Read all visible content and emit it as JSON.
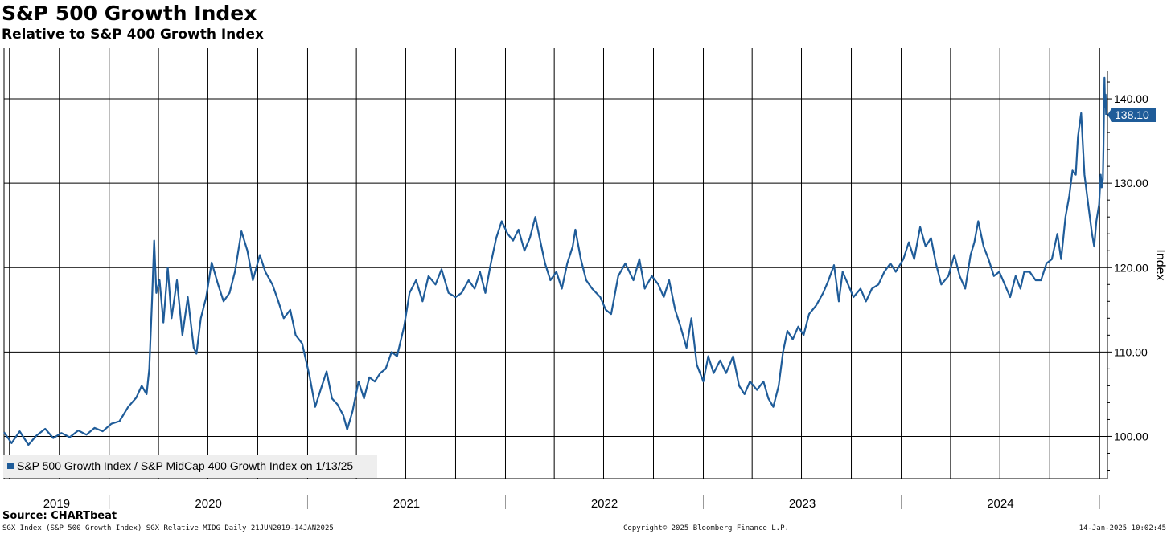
{
  "header": {
    "title": "S&P 500 Growth Index",
    "subtitle": "Relative to S&P 400 Growth Index"
  },
  "footer": {
    "source": "Source: CHARTbeat",
    "ticker_info": "SGX Index (S&P 500 Growth Index) SGX Relative MIDG  Daily 21JUN2019-14JAN2025",
    "copyright": "Copyright© 2025 Bloomberg Finance L.P.",
    "timestamp": "14-Jan-2025 10:02:45"
  },
  "colors": {
    "series": "#1f5c99",
    "grid": "#000000",
    "legend_bg": "#eeeeee",
    "label_text": "#ffffff"
  },
  "chart_data": {
    "type": "line",
    "title": "S&P 500 Growth Index",
    "subtitle": "Relative to S&P 400 Growth Index",
    "ylabel": "Index",
    "xlabel": "",
    "ylim": [
      95,
      146
    ],
    "xlim": [
      "2019-06-21",
      "2025-01-14"
    ],
    "yticks": [
      100,
      110,
      120,
      130,
      140
    ],
    "ytick_labels": [
      "100.00",
      "110.00",
      "120.00",
      "130.00",
      "140.00"
    ],
    "year_labels": [
      "2019",
      "2020",
      "2021",
      "2022",
      "2023",
      "2024"
    ],
    "grid": true,
    "legend": {
      "position": "bottom-left",
      "entries": [
        "S&P 500 Growth Index / S&P MidCap 400 Growth Index on 1/13/25"
      ]
    },
    "last_value": 138.1,
    "last_value_label": "138.10",
    "series": [
      {
        "name": "S&P 500 Growth Index / S&P MidCap 400 Growth Index on 1/13/25",
        "points": [
          [
            "2019-06-21",
            100.5
          ],
          [
            "2019-07-05",
            99.2
          ],
          [
            "2019-07-20",
            100.6
          ],
          [
            "2019-08-05",
            99.0
          ],
          [
            "2019-08-20",
            100.1
          ],
          [
            "2019-09-05",
            100.9
          ],
          [
            "2019-09-20",
            99.8
          ],
          [
            "2019-10-05",
            100.4
          ],
          [
            "2019-10-20",
            99.9
          ],
          [
            "2019-11-05",
            100.7
          ],
          [
            "2019-11-20",
            100.2
          ],
          [
            "2019-12-05",
            101.0
          ],
          [
            "2019-12-20",
            100.6
          ],
          [
            "2020-01-05",
            101.5
          ],
          [
            "2020-01-20",
            101.8
          ],
          [
            "2020-02-05",
            103.5
          ],
          [
            "2020-02-20",
            104.6
          ],
          [
            "2020-03-01",
            106.0
          ],
          [
            "2020-03-10",
            105.0
          ],
          [
            "2020-03-15",
            108.0
          ],
          [
            "2020-03-20",
            116.0
          ],
          [
            "2020-03-24",
            123.2
          ],
          [
            "2020-03-28",
            117.0
          ],
          [
            "2020-04-03",
            118.5
          ],
          [
            "2020-04-10",
            113.5
          ],
          [
            "2020-04-18",
            120.0
          ],
          [
            "2020-04-25",
            114.0
          ],
          [
            "2020-05-05",
            118.5
          ],
          [
            "2020-05-15",
            112.0
          ],
          [
            "2020-05-25",
            116.5
          ],
          [
            "2020-06-05",
            110.5
          ],
          [
            "2020-06-10",
            109.8
          ],
          [
            "2020-06-18",
            114.0
          ],
          [
            "2020-06-28",
            116.5
          ],
          [
            "2020-07-08",
            120.6
          ],
          [
            "2020-07-20",
            118.0
          ],
          [
            "2020-07-30",
            116.0
          ],
          [
            "2020-08-10",
            117.0
          ],
          [
            "2020-08-20",
            119.5
          ],
          [
            "2020-09-01",
            124.3
          ],
          [
            "2020-09-12",
            122.0
          ],
          [
            "2020-09-22",
            118.5
          ],
          [
            "2020-10-05",
            121.5
          ],
          [
            "2020-10-15",
            119.5
          ],
          [
            "2020-10-28",
            118.0
          ],
          [
            "2020-11-08",
            116.0
          ],
          [
            "2020-11-18",
            114.0
          ],
          [
            "2020-11-30",
            115.0
          ],
          [
            "2020-12-10",
            112.0
          ],
          [
            "2020-12-22",
            111.0
          ],
          [
            "2021-01-05",
            107.0
          ],
          [
            "2021-01-15",
            103.5
          ],
          [
            "2021-01-25",
            105.5
          ],
          [
            "2021-02-05",
            107.7
          ],
          [
            "2021-02-15",
            104.5
          ],
          [
            "2021-02-25",
            103.8
          ],
          [
            "2021-03-08",
            102.5
          ],
          [
            "2021-03-15",
            100.8
          ],
          [
            "2021-03-25",
            103.0
          ],
          [
            "2021-04-05",
            106.5
          ],
          [
            "2021-04-15",
            104.5
          ],
          [
            "2021-04-25",
            107.0
          ],
          [
            "2021-05-05",
            106.5
          ],
          [
            "2021-05-15",
            107.5
          ],
          [
            "2021-05-25",
            108.0
          ],
          [
            "2021-06-05",
            110.0
          ],
          [
            "2021-06-15",
            109.5
          ],
          [
            "2021-06-28",
            113.0
          ],
          [
            "2021-07-08",
            117.0
          ],
          [
            "2021-07-20",
            118.5
          ],
          [
            "2021-08-01",
            116.0
          ],
          [
            "2021-08-12",
            119.0
          ],
          [
            "2021-08-25",
            118.0
          ],
          [
            "2021-09-05",
            119.8
          ],
          [
            "2021-09-18",
            117.0
          ],
          [
            "2021-10-01",
            116.5
          ],
          [
            "2021-10-12",
            117.0
          ],
          [
            "2021-10-25",
            118.5
          ],
          [
            "2021-11-05",
            117.5
          ],
          [
            "2021-11-15",
            119.5
          ],
          [
            "2021-11-25",
            117.0
          ],
          [
            "2021-12-05",
            120.5
          ],
          [
            "2021-12-15",
            123.5
          ],
          [
            "2021-12-25",
            125.5
          ],
          [
            "2022-01-05",
            124.0
          ],
          [
            "2022-01-15",
            123.2
          ],
          [
            "2022-01-25",
            124.5
          ],
          [
            "2022-02-05",
            122.0
          ],
          [
            "2022-02-15",
            123.5
          ],
          [
            "2022-02-25",
            126.0
          ],
          [
            "2022-03-05",
            123.5
          ],
          [
            "2022-03-15",
            120.5
          ],
          [
            "2022-03-25",
            118.5
          ],
          [
            "2022-04-05",
            119.5
          ],
          [
            "2022-04-15",
            117.5
          ],
          [
            "2022-04-25",
            120.5
          ],
          [
            "2022-05-05",
            122.5
          ],
          [
            "2022-05-10",
            124.5
          ],
          [
            "2022-05-20",
            121.0
          ],
          [
            "2022-05-30",
            118.5
          ],
          [
            "2022-06-10",
            117.5
          ],
          [
            "2022-06-25",
            116.5
          ],
          [
            "2022-07-05",
            115.0
          ],
          [
            "2022-07-15",
            114.5
          ],
          [
            "2022-07-28",
            119.0
          ],
          [
            "2022-08-10",
            120.5
          ],
          [
            "2022-08-25",
            118.5
          ],
          [
            "2022-09-05",
            121.0
          ],
          [
            "2022-09-15",
            117.5
          ],
          [
            "2022-09-28",
            119.0
          ],
          [
            "2022-10-10",
            118.0
          ],
          [
            "2022-10-20",
            116.5
          ],
          [
            "2022-10-30",
            118.5
          ],
          [
            "2022-11-10",
            115.0
          ],
          [
            "2022-11-20",
            113.0
          ],
          [
            "2022-12-01",
            110.5
          ],
          [
            "2022-12-10",
            114.0
          ],
          [
            "2022-12-20",
            108.5
          ],
          [
            "2023-01-01",
            106.5
          ],
          [
            "2023-01-10",
            109.5
          ],
          [
            "2023-01-20",
            107.5
          ],
          [
            "2023-02-01",
            109.0
          ],
          [
            "2023-02-12",
            107.5
          ],
          [
            "2023-02-25",
            109.5
          ],
          [
            "2023-03-08",
            106.0
          ],
          [
            "2023-03-18",
            105.0
          ],
          [
            "2023-03-28",
            106.5
          ],
          [
            "2023-04-10",
            105.5
          ],
          [
            "2023-04-22",
            106.5
          ],
          [
            "2023-05-01",
            104.5
          ],
          [
            "2023-05-10",
            103.5
          ],
          [
            "2023-05-20",
            106.0
          ],
          [
            "2023-05-28",
            110.0
          ],
          [
            "2023-06-05",
            112.5
          ],
          [
            "2023-06-15",
            111.5
          ],
          [
            "2023-06-25",
            113.0
          ],
          [
            "2023-07-05",
            112.0
          ],
          [
            "2023-07-15",
            114.5
          ],
          [
            "2023-07-28",
            115.5
          ],
          [
            "2023-08-10",
            117.0
          ],
          [
            "2023-08-20",
            118.5
          ],
          [
            "2023-08-30",
            120.3
          ],
          [
            "2023-09-08",
            116.0
          ],
          [
            "2023-09-15",
            119.5
          ],
          [
            "2023-09-25",
            118.0
          ],
          [
            "2023-10-05",
            116.5
          ],
          [
            "2023-10-18",
            117.5
          ],
          [
            "2023-10-28",
            116.0
          ],
          [
            "2023-11-08",
            117.5
          ],
          [
            "2023-11-20",
            118.0
          ],
          [
            "2023-12-01",
            119.5
          ],
          [
            "2023-12-12",
            120.5
          ],
          [
            "2023-12-22",
            119.5
          ],
          [
            "2024-01-05",
            121.0
          ],
          [
            "2024-01-15",
            123.0
          ],
          [
            "2024-01-25",
            121.0
          ],
          [
            "2024-02-05",
            124.8
          ],
          [
            "2024-02-15",
            122.5
          ],
          [
            "2024-02-25",
            123.5
          ],
          [
            "2024-03-05",
            120.5
          ],
          [
            "2024-03-15",
            118.0
          ],
          [
            "2024-03-28",
            119.0
          ],
          [
            "2024-04-08",
            121.5
          ],
          [
            "2024-04-18",
            119.0
          ],
          [
            "2024-04-28",
            117.5
          ],
          [
            "2024-05-08",
            121.5
          ],
          [
            "2024-05-15",
            123.0
          ],
          [
            "2024-05-22",
            125.5
          ],
          [
            "2024-06-01",
            122.5
          ],
          [
            "2024-06-10",
            121.0
          ],
          [
            "2024-06-20",
            119.0
          ],
          [
            "2024-06-30",
            119.5
          ],
          [
            "2024-07-10",
            118.0
          ],
          [
            "2024-07-20",
            116.5
          ],
          [
            "2024-07-30",
            119.0
          ],
          [
            "2024-08-08",
            117.5
          ],
          [
            "2024-08-15",
            119.5
          ],
          [
            "2024-08-25",
            119.5
          ],
          [
            "2024-09-05",
            118.5
          ],
          [
            "2024-09-15",
            118.5
          ],
          [
            "2024-09-25",
            120.5
          ],
          [
            "2024-10-05",
            121.0
          ],
          [
            "2024-10-15",
            124.0
          ],
          [
            "2024-10-22",
            121.0
          ],
          [
            "2024-10-30",
            126.0
          ],
          [
            "2024-11-06",
            128.5
          ],
          [
            "2024-11-12",
            131.5
          ],
          [
            "2024-11-18",
            131.0
          ],
          [
            "2024-11-22",
            135.5
          ],
          [
            "2024-11-28",
            138.3
          ],
          [
            "2024-12-04",
            131.0
          ],
          [
            "2024-12-10",
            128.0
          ],
          [
            "2024-12-18",
            124.0
          ],
          [
            "2024-12-22",
            122.5
          ],
          [
            "2024-12-26",
            125.5
          ],
          [
            "2024-12-31",
            127.5
          ],
          [
            "2025-01-03",
            131.0
          ],
          [
            "2025-01-05",
            129.5
          ],
          [
            "2025-01-07",
            130.5
          ],
          [
            "2025-01-08",
            134.0
          ],
          [
            "2025-01-09",
            138.0
          ],
          [
            "2025-01-10",
            142.5
          ],
          [
            "2025-01-11",
            139.0
          ],
          [
            "2025-01-12",
            140.5
          ],
          [
            "2025-01-13",
            138.1
          ]
        ]
      }
    ]
  }
}
